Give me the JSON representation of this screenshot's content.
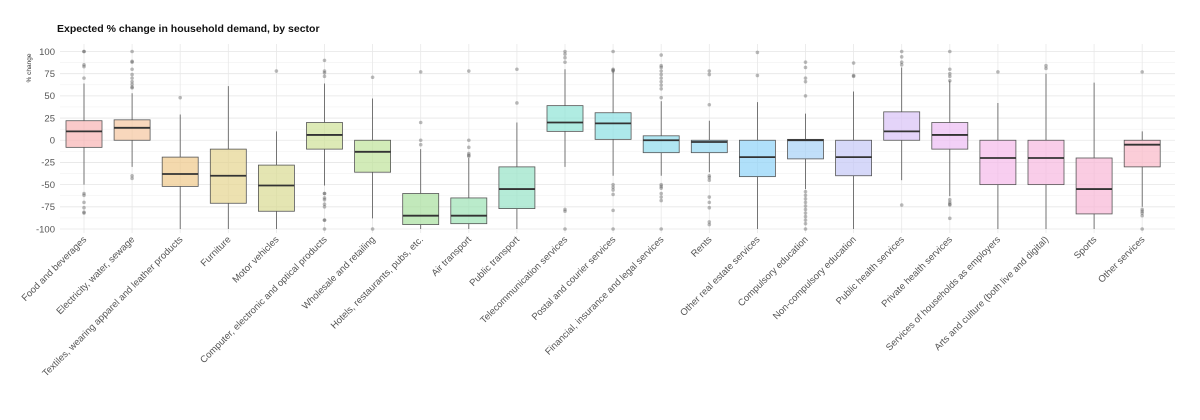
{
  "chart_data": {
    "type": "box",
    "title": "Expected % change in household demand, by sector",
    "xlabel": "",
    "ylabel": "% change",
    "ylim": [
      -100,
      100
    ],
    "yticks": [
      100,
      75,
      50,
      25,
      0,
      -25,
      -50,
      -75,
      -100
    ],
    "ytick_labels": [
      "100",
      "75",
      "50",
      "25",
      "0",
      "-25",
      "-50",
      "-75",
      "-100"
    ],
    "grid": true,
    "legend": "none",
    "categories": [
      "Food and beverages",
      "Electricity, water, sewage",
      "Textiles, wearing apparel and leather products",
      "Furniture",
      "Motor vehicles",
      "Computer, electronic and optical products",
      "Wholesale and retailing",
      "Hotels, restaurants, pubs, etc.",
      "Air transport",
      "Public transport",
      "Telecommunication services",
      "Postal and courier services",
      "Financial, insurance and legal services",
      "Rents",
      "Other real estate services",
      "Compulsory education",
      "Non-compulsory education",
      "Public health services",
      "Private health services",
      "Services of households as employers",
      "Arts and culture (both live and digital)",
      "Sports",
      "Other services"
    ],
    "boxes": [
      {
        "q1": -8,
        "median": 10,
        "q3": 22,
        "whisker_low": -50,
        "whisker_high": 64,
        "outliers": [
          100,
          100,
          85,
          83,
          70,
          -60,
          -62,
          -70,
          -76,
          -81,
          -82
        ],
        "color": "#f8b4b4"
      },
      {
        "q1": 0,
        "median": 14,
        "q3": 23,
        "whisker_low": -30,
        "whisker_high": 53,
        "outliers": [
          100,
          89,
          88,
          80,
          74,
          70,
          66,
          63,
          60,
          59,
          -40,
          -43
        ],
        "color": "#f5c6a0"
      },
      {
        "q1": -52,
        "median": -38,
        "q3": -19,
        "whisker_low": -100,
        "whisker_high": 29,
        "outliers": [
          48
        ],
        "color": "#f0c98a"
      },
      {
        "q1": -71,
        "median": -40,
        "q3": -10,
        "whisker_low": -100,
        "whisker_high": 61,
        "outliers": [],
        "color": "#e6d48e"
      },
      {
        "q1": -80,
        "median": -51,
        "q3": -28,
        "whisker_low": -100,
        "whisker_high": 10,
        "outliers": [
          78
        ],
        "color": "#d9da92"
      },
      {
        "q1": -10,
        "median": 6,
        "q3": 20,
        "whisker_low": -51,
        "whisker_high": 64,
        "outliers": [
          90,
          78,
          76,
          72,
          -60,
          -60,
          -65,
          -67,
          -72,
          -75,
          -90,
          -90,
          -100
        ],
        "color": "#cfe197"
      },
      {
        "q1": -36,
        "median": -13,
        "q3": 0,
        "whisker_low": -88,
        "whisker_high": 47,
        "outliers": [
          71,
          -100
        ],
        "color": "#bfe29a"
      },
      {
        "q1": -95,
        "median": -85,
        "q3": -60,
        "whisker_low": -100,
        "whisker_high": -10,
        "outliers": [
          77,
          20,
          0,
          -5
        ],
        "color": "#a8e09e"
      },
      {
        "q1": -94,
        "median": -85,
        "q3": -65,
        "whisker_low": -100,
        "whisker_high": -20,
        "outliers": [
          78,
          0,
          -8,
          -15,
          -17,
          -18
        ],
        "color": "#9de3b5"
      },
      {
        "q1": -77,
        "median": -55,
        "q3": -30,
        "whisker_low": -100,
        "whisker_high": 20,
        "outliers": [
          80,
          42
        ],
        "color": "#96e3c6"
      },
      {
        "q1": 10,
        "median": 20,
        "q3": 39,
        "whisker_low": -30,
        "whisker_high": 80,
        "outliers": [
          100,
          97,
          93,
          88,
          -78,
          -80,
          -100
        ],
        "color": "#8fe4d6"
      },
      {
        "q1": 1,
        "median": 19,
        "q3": 31,
        "whisker_low": -40,
        "whisker_high": 78,
        "outliers": [
          100,
          80,
          79,
          78,
          -50,
          -53,
          -56,
          -61,
          -79,
          -100
        ],
        "color": "#8adfe2"
      },
      {
        "q1": -14,
        "median": 0,
        "q3": 5,
        "whisker_low": -40,
        "whisker_high": 44,
        "outliers": [
          96,
          84,
          82,
          78,
          74,
          70,
          66,
          62,
          58,
          48,
          -50,
          -52,
          -54,
          -60,
          -64,
          -68,
          -100
        ],
        "color": "#8fdcec"
      },
      {
        "q1": -14,
        "median": -2,
        "q3": 0,
        "whisker_low": -36,
        "whisker_high": 22,
        "outliers": [
          78,
          74,
          40,
          -40,
          -42,
          -45,
          -64,
          -70,
          -76,
          -92,
          -95
        ],
        "color": "#94d8f2"
      },
      {
        "q1": -41,
        "median": -19,
        "q3": 0,
        "whisker_low": -100,
        "whisker_high": 43,
        "outliers": [
          99,
          73
        ],
        "color": "#8fd3f8"
      },
      {
        "q1": -21,
        "median": 0,
        "q3": 1,
        "whisker_low": -55,
        "whisker_high": 30,
        "outliers": [
          88,
          82,
          70,
          66,
          50,
          -58,
          -62,
          -66,
          -70,
          -74,
          -78,
          -82,
          -86,
          -90,
          -94,
          -100
        ],
        "color": "#a7d1f7"
      },
      {
        "q1": -40,
        "median": -19,
        "q3": 0,
        "whisker_low": -100,
        "whisker_high": 55,
        "outliers": [
          87,
          73,
          72
        ],
        "color": "#c4c8f6"
      },
      {
        "q1": 0,
        "median": 10,
        "q3": 32,
        "whisker_low": -45,
        "whisker_high": 82,
        "outliers": [
          100,
          94,
          88,
          85,
          -73
        ],
        "color": "#d8c2f6"
      },
      {
        "q1": -10,
        "median": 6,
        "q3": 20,
        "whisker_low": -63,
        "whisker_high": 67,
        "outliers": [
          100,
          80,
          75,
          72,
          67,
          -67,
          -70,
          -72,
          -73,
          -88
        ],
        "color": "#ecbcf4"
      },
      {
        "q1": -50,
        "median": -20,
        "q3": 0,
        "whisker_low": -100,
        "whisker_high": 42,
        "outliers": [
          77
        ],
        "color": "#f5b9ea"
      },
      {
        "q1": -50,
        "median": -20,
        "q3": 0,
        "whisker_low": -100,
        "whisker_high": 75,
        "outliers": [
          84,
          81
        ],
        "color": "#f7b8e0"
      },
      {
        "q1": -83,
        "median": -55,
        "q3": -20,
        "whisker_low": -100,
        "whisker_high": 65,
        "outliers": [],
        "color": "#f8b6d6"
      },
      {
        "q1": -30,
        "median": -5,
        "q3": 0,
        "whisker_low": -75,
        "whisker_high": 10,
        "outliers": [
          77,
          -78,
          -80,
          -82,
          -85,
          -100
        ],
        "color": "#f9b8c8"
      }
    ]
  }
}
